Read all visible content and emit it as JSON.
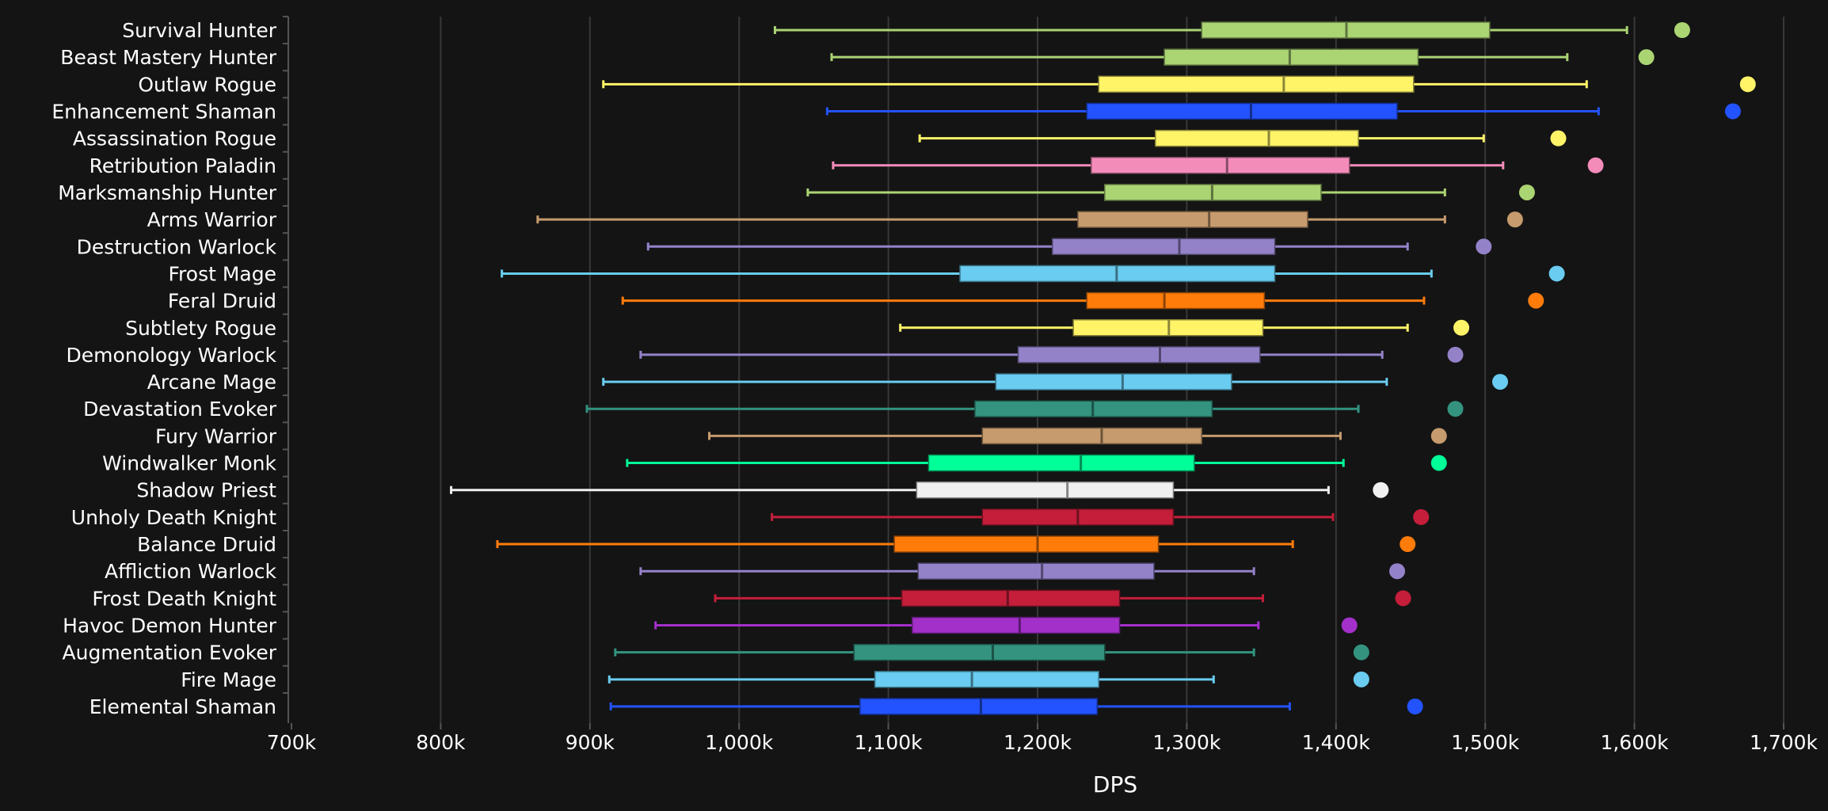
{
  "chart_data": {
    "type": "box",
    "orientation": "horizontal",
    "xlabel": "DPS",
    "xlim": [
      700000,
      1700000
    ],
    "xticks": [
      700000,
      800000,
      900000,
      1000000,
      1100000,
      1200000,
      1300000,
      1400000,
      1500000,
      1600000,
      1700000
    ],
    "xtick_labels": [
      "700k",
      "800k",
      "900k",
      "1,000k",
      "1,100k",
      "1,200k",
      "1,300k",
      "1,400k",
      "1,500k",
      "1,600k",
      "1,700k"
    ],
    "grid": "vertical",
    "series": [
      {
        "name": "Survival Hunter",
        "color": "#abd473",
        "min": 1024000,
        "q1": 1310000,
        "median": 1407000,
        "q3": 1503000,
        "max": 1595000,
        "outlier": 1632000
      },
      {
        "name": "Beast Mastery Hunter",
        "color": "#abd473",
        "min": 1062000,
        "q1": 1285000,
        "median": 1369000,
        "q3": 1455000,
        "max": 1555000,
        "outlier": 1608000
      },
      {
        "name": "Outlaw Rogue",
        "color": "#fff468",
        "min": 909000,
        "q1": 1241000,
        "median": 1365000,
        "q3": 1452000,
        "max": 1568000,
        "outlier": 1676000
      },
      {
        "name": "Enhancement Shaman",
        "color": "#2353ff",
        "min": 1059000,
        "q1": 1233000,
        "median": 1343000,
        "q3": 1441000,
        "max": 1576000,
        "outlier": 1666000
      },
      {
        "name": "Assassination Rogue",
        "color": "#fff468",
        "min": 1121000,
        "q1": 1279000,
        "median": 1355000,
        "q3": 1415000,
        "max": 1499000,
        "outlier": 1549000
      },
      {
        "name": "Retribution Paladin",
        "color": "#f48cba",
        "min": 1063000,
        "q1": 1236000,
        "median": 1327000,
        "q3": 1409000,
        "max": 1512000,
        "outlier": 1574000
      },
      {
        "name": "Marksmanship Hunter",
        "color": "#abd473",
        "min": 1046000,
        "q1": 1245000,
        "median": 1317000,
        "q3": 1390000,
        "max": 1473000,
        "outlier": 1528000
      },
      {
        "name": "Arms Warrior",
        "color": "#c69b6d",
        "min": 865000,
        "q1": 1227000,
        "median": 1315000,
        "q3": 1381000,
        "max": 1473000,
        "outlier": 1520000
      },
      {
        "name": "Destruction Warlock",
        "color": "#9482c9",
        "min": 939000,
        "q1": 1210000,
        "median": 1295000,
        "q3": 1359000,
        "max": 1448000,
        "outlier": 1499000
      },
      {
        "name": "Frost Mage",
        "color": "#69ccf0",
        "min": 841000,
        "q1": 1148000,
        "median": 1253000,
        "q3": 1359000,
        "max": 1464000,
        "outlier": 1548000
      },
      {
        "name": "Feral Druid",
        "color": "#ff7c0a",
        "min": 922000,
        "q1": 1233000,
        "median": 1285000,
        "q3": 1352000,
        "max": 1459000,
        "outlier": 1534000
      },
      {
        "name": "Subtlety Rogue",
        "color": "#fff468",
        "min": 1108000,
        "q1": 1224000,
        "median": 1288000,
        "q3": 1351000,
        "max": 1448000,
        "outlier": 1484000
      },
      {
        "name": "Demonology Warlock",
        "color": "#9482c9",
        "min": 934000,
        "q1": 1187000,
        "median": 1282000,
        "q3": 1349000,
        "max": 1431000,
        "outlier": 1480000
      },
      {
        "name": "Arcane Mage",
        "color": "#69ccf0",
        "min": 909000,
        "q1": 1172000,
        "median": 1257000,
        "q3": 1330000,
        "max": 1434000,
        "outlier": 1510000
      },
      {
        "name": "Devastation Evoker",
        "color": "#33937f",
        "min": 898000,
        "q1": 1158000,
        "median": 1237000,
        "q3": 1317000,
        "max": 1415000,
        "outlier": 1480000
      },
      {
        "name": "Fury Warrior",
        "color": "#c69b6d",
        "min": 980000,
        "q1": 1163000,
        "median": 1243000,
        "q3": 1310000,
        "max": 1403000,
        "outlier": 1469000
      },
      {
        "name": "Windwalker Monk",
        "color": "#00ff98",
        "min": 925000,
        "q1": 1127000,
        "median": 1229000,
        "q3": 1305000,
        "max": 1405000,
        "outlier": 1469000
      },
      {
        "name": "Shadow Priest",
        "color": "#f0f0f0",
        "min": 807000,
        "q1": 1119000,
        "median": 1220000,
        "q3": 1291000,
        "max": 1395000,
        "outlier": 1430000
      },
      {
        "name": "Unholy Death Knight",
        "color": "#c41e3a",
        "min": 1022000,
        "q1": 1163000,
        "median": 1227000,
        "q3": 1291000,
        "max": 1398000,
        "outlier": 1457000
      },
      {
        "name": "Balance Druid",
        "color": "#ff7c0a",
        "min": 838000,
        "q1": 1104000,
        "median": 1200000,
        "q3": 1281000,
        "max": 1371000,
        "outlier": 1448000
      },
      {
        "name": "Affliction Warlock",
        "color": "#9482c9",
        "min": 934000,
        "q1": 1120000,
        "median": 1203000,
        "q3": 1278000,
        "max": 1345000,
        "outlier": 1441000
      },
      {
        "name": "Frost Death Knight",
        "color": "#c41e3a",
        "min": 984000,
        "q1": 1109000,
        "median": 1180000,
        "q3": 1255000,
        "max": 1351000,
        "outlier": 1445000
      },
      {
        "name": "Havoc Demon Hunter",
        "color": "#a330c9",
        "min": 944000,
        "q1": 1116000,
        "median": 1188000,
        "q3": 1255000,
        "max": 1348000,
        "outlier": 1409000
      },
      {
        "name": "Augmentation Evoker",
        "color": "#33937f",
        "min": 917000,
        "q1": 1077000,
        "median": 1170000,
        "q3": 1245000,
        "max": 1345000,
        "outlier": 1417000
      },
      {
        "name": "Fire Mage",
        "color": "#69ccf0",
        "min": 913000,
        "q1": 1091000,
        "median": 1156000,
        "q3": 1241000,
        "max": 1318000,
        "outlier": 1417000
      },
      {
        "name": "Elemental Shaman",
        "color": "#2353ff",
        "min": 914000,
        "q1": 1081000,
        "median": 1162000,
        "q3": 1240000,
        "max": 1369000,
        "outlier": 1453000
      }
    ]
  }
}
